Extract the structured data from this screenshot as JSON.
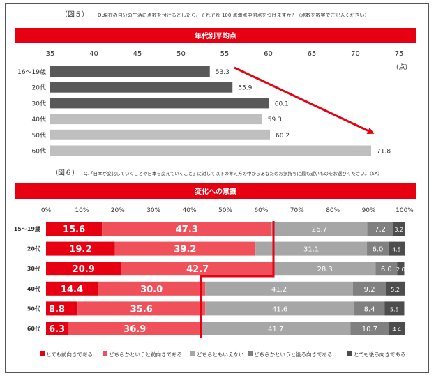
{
  "fig5": {
    "fig_label": "（図５）",
    "question": "Q.現在の自分の生活に点数を付けるとしたら、それぞれ 100 点満点中何点をつけますか？（点数を数字でご記入ください）",
    "banner": "年代別平均点",
    "unit": "(点)"
  },
  "fig6": {
    "fig_label": "（図６）",
    "question": "Q.「日本が変化していくことや日本を変えていくこと」に対して以下の考え方の中からあなたのお気持ちに最も近いものをお選びください。（SA）",
    "banner": "変化への意識"
  },
  "chart_data": [
    {
      "type": "bar",
      "orientation": "horizontal",
      "title": "年代別平均点",
      "categories": [
        "16〜19歳",
        "20代",
        "30代",
        "40代",
        "50代",
        "60代"
      ],
      "values": [
        53.3,
        55.9,
        60.1,
        59.3,
        60.2,
        71.8
      ],
      "value_labels": [
        "53.3",
        "55.9",
        "60.1",
        "59.3",
        "60.2",
        "71.8"
      ],
      "bar_colors": [
        "#595959",
        "#595959",
        "#595959",
        "#bfbfbf",
        "#bfbfbf",
        "#bfbfbf"
      ],
      "xlim": [
        35,
        75
      ],
      "xticks": [
        "35",
        "40",
        "45",
        "50",
        "55",
        "60",
        "65",
        "70",
        "75"
      ],
      "unit": "(点)",
      "annotation": "red arrow trending down-right",
      "grid": false
    },
    {
      "type": "bar",
      "orientation": "horizontal",
      "stacked": "percent",
      "title": "変化への意識",
      "categories": [
        "15〜19歳",
        "20代",
        "30代",
        "40代",
        "50代",
        "60代"
      ],
      "xlim": [
        0,
        100
      ],
      "xticks": [
        "0%",
        "10%",
        "20%",
        "30%",
        "40%",
        "50%",
        "60%",
        "70%",
        "80%",
        "90%",
        "100%"
      ],
      "series": [
        {
          "name": "とても前向きである",
          "color": "#e60012",
          "values": [
            15.6,
            19.2,
            20.9,
            14.4,
            8.8,
            6.3
          ],
          "labels": [
            "15.6",
            "19.2",
            "20.9",
            "14.4",
            "8.8",
            "6.3"
          ]
        },
        {
          "name": "どちらかというと前向きである",
          "color": "#f0505a",
          "values": [
            47.3,
            39.2,
            42.7,
            30.0,
            35.6,
            36.9
          ],
          "labels": [
            "47.3",
            "39.2",
            "42.7",
            "30.0",
            "35.6",
            "36.9"
          ]
        },
        {
          "name": "どちらともいえない",
          "color": "#a6a6a6",
          "values": [
            26.7,
            31.1,
            28.3,
            41.2,
            41.6,
            41.7
          ],
          "labels": [
            "26.7",
            "31.1",
            "28.3",
            "41.2",
            "41.6",
            "41.7"
          ]
        },
        {
          "name": "どちらかというと後ろ向きである",
          "color": "#808080",
          "values": [
            7.2,
            6.0,
            6.0,
            9.2,
            8.4,
            10.7
          ],
          "labels": [
            "7.2",
            "6.0",
            "6.0",
            "9.2",
            "8.4",
            "10.7"
          ]
        },
        {
          "name": "とても後ろ向きである",
          "color": "#4d4d4d",
          "values": [
            3.2,
            4.5,
            2.0,
            5.2,
            5.5,
            4.4
          ],
          "labels": [
            "3.2",
            "4.5",
            "2.0",
            "5.2",
            "5.5",
            "4.4"
          ]
        }
      ],
      "legend_position": "bottom",
      "annotation": "red step line separating positive and neutral segments"
    }
  ]
}
